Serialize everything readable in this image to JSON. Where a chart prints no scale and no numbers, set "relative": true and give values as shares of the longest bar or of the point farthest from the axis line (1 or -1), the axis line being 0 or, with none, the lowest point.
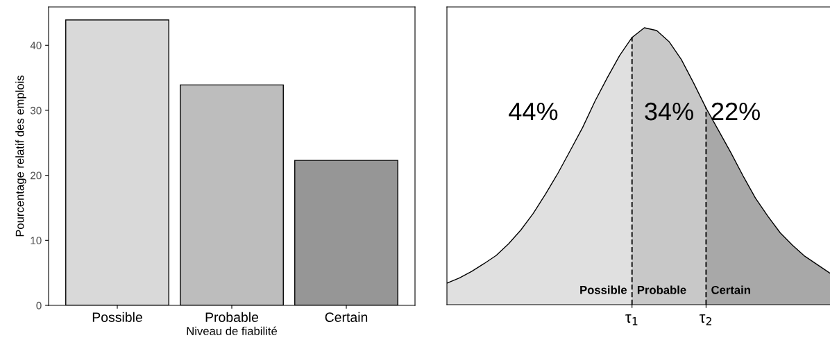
{
  "chart_data": [
    {
      "type": "bar",
      "xlabel": "Niveau de fiabilité",
      "ylabel": "Pourcentage relatif des emplois",
      "categories": [
        "Possible",
        "Probable",
        "Certain"
      ],
      "values": [
        43.9,
        33.9,
        22.3
      ],
      "colors": [
        "#d9d9d9",
        "#bdbdbd",
        "#969696"
      ],
      "ylim": [
        0,
        45.9
      ],
      "yticks": [
        0,
        10,
        20,
        30,
        40
      ],
      "grid": false
    },
    {
      "type": "area",
      "relative": true,
      "categories": [
        null,
        null,
        null,
        null,
        null,
        null,
        null,
        null,
        null,
        null,
        null,
        null,
        null,
        null,
        null,
        "τ$_{1}$",
        null,
        null,
        null,
        null,
        null,
        "τ$_{2}$",
        null,
        null,
        null,
        null,
        null,
        null,
        null,
        null,
        null,
        null,
        null
      ],
      "series": [
        {
          "name": "Possible",
          "color": "#e0e0e0",
          "values": [
            0.078,
            0.096,
            0.12,
            0.148,
            0.178,
            0.22,
            0.27,
            0.33,
            0.4,
            0.475,
            0.557,
            0.64,
            0.735,
            0.82,
            0.9,
            0.965,
            null,
            null,
            null,
            null,
            null,
            null,
            null,
            null,
            null,
            null,
            null,
            null,
            null,
            null,
            null,
            null,
            null
          ]
        },
        {
          "name": "Probable",
          "color": "#c8c8c8",
          "values": [
            null,
            null,
            null,
            null,
            null,
            null,
            null,
            null,
            null,
            null,
            null,
            null,
            null,
            null,
            null,
            0.965,
            1.0,
            0.99,
            0.95,
            0.885,
            0.8,
            0.71,
            null,
            null,
            null,
            null,
            null,
            null,
            null,
            null,
            null,
            null,
            null
          ]
        },
        {
          "name": "Certain",
          "color": "#a8a8a8",
          "values": [
            null,
            null,
            null,
            null,
            null,
            null,
            null,
            null,
            null,
            null,
            null,
            null,
            null,
            null,
            null,
            null,
            null,
            null,
            null,
            null,
            null,
            0.71,
            0.63,
            0.55,
            0.465,
            0.385,
            0.32,
            0.26,
            0.215,
            0.175,
            0.145,
            0.115,
            0.086
          ]
        }
      ],
      "ref_lines": [
        {
          "axis": "x",
          "value": "τ$_{1}$",
          "line_style": "dashed"
        },
        {
          "axis": "x",
          "value": "τ$_{2}$",
          "line_style": "dashed"
        }
      ],
      "annotations": [
        "44%",
        "34%",
        "22%"
      ],
      "grid": false
    }
  ]
}
